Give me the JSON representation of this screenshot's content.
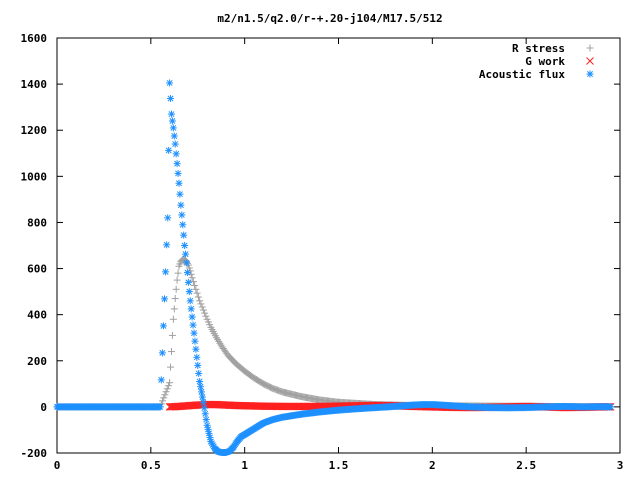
{
  "chart_data": {
    "type": "scatter",
    "title": "m2/n1.5/q2.0/r-+.20-j104/M17.5/512",
    "xlabel": "",
    "ylabel": "",
    "xlim": [
      0,
      3
    ],
    "ylim": [
      -200,
      1600
    ],
    "x_ticks": [
      "0",
      "0.5",
      "1",
      "1.5",
      "2",
      "2.5",
      "3"
    ],
    "x_tick_values": [
      0,
      0.5,
      1,
      1.5,
      2,
      2.5,
      3
    ],
    "y_ticks": [
      "-200",
      "0",
      "200",
      "400",
      "600",
      "800",
      "1000",
      "1200",
      "1400",
      "1600"
    ],
    "y_tick_values": [
      -200,
      0,
      200,
      400,
      600,
      800,
      1000,
      1200,
      1400,
      1600
    ],
    "grid": false,
    "legend_position": "top-right",
    "series": [
      {
        "name": "R stress",
        "marker": "plus",
        "color": "#a0a0a0",
        "x": [
          0.0,
          0.2,
          0.4,
          0.55,
          0.6,
          0.61,
          0.62,
          0.63,
          0.64,
          0.65,
          0.66,
          0.67,
          0.68,
          0.69,
          0.7,
          0.71,
          0.72,
          0.74,
          0.76,
          0.78,
          0.8,
          0.82,
          0.85,
          0.88,
          0.91,
          0.95,
          1.0,
          1.05,
          1.1,
          1.15,
          1.2,
          1.3,
          1.4,
          1.5,
          1.6,
          1.7,
          1.8,
          1.9,
          2.0,
          2.2,
          2.4,
          2.6,
          2.8,
          2.95
        ],
        "y": [
          0,
          0,
          0,
          0,
          105,
          240,
          380,
          470,
          550,
          610,
          630,
          640,
          640,
          630,
          615,
          590,
          560,
          510,
          460,
          420,
          380,
          345,
          300,
          260,
          225,
          190,
          155,
          125,
          100,
          80,
          65,
          45,
          30,
          20,
          15,
          10,
          8,
          6,
          5,
          4,
          3,
          2,
          1,
          0
        ]
      },
      {
        "name": "G work",
        "marker": "cross",
        "color": "#ff2020",
        "x": [
          0.6,
          0.65,
          0.7,
          0.75,
          0.8,
          0.85,
          0.9,
          0.95,
          1.0,
          1.1,
          1.2,
          1.3,
          1.4,
          1.5,
          1.6,
          1.7,
          1.8,
          1.9,
          2.0,
          2.1,
          2.2,
          2.3,
          2.4,
          2.5,
          2.6,
          2.7,
          2.8,
          2.9,
          2.95
        ],
        "y": [
          0,
          2,
          5,
          8,
          10,
          10,
          8,
          6,
          5,
          3,
          2,
          2,
          2,
          3,
          5,
          6,
          5,
          2,
          0,
          -2,
          -3,
          -2,
          0,
          2,
          0,
          -3,
          -2,
          0,
          0
        ]
      },
      {
        "name": "Acoustic flux",
        "marker": "star",
        "color": "#1e90ff",
        "x": [
          0.0,
          0.1,
          0.2,
          0.3,
          0.4,
          0.5,
          0.55,
          0.59,
          0.6,
          0.61,
          0.62,
          0.63,
          0.64,
          0.65,
          0.66,
          0.67,
          0.68,
          0.69,
          0.7,
          0.71,
          0.72,
          0.73,
          0.74,
          0.75,
          0.76,
          0.78,
          0.8,
          0.82,
          0.84,
          0.86,
          0.88,
          0.9,
          0.92,
          0.94,
          0.96,
          0.98,
          1.0,
          1.02,
          1.04,
          1.06,
          1.08,
          1.1,
          1.15,
          1.2,
          1.3,
          1.4,
          1.5,
          1.6,
          1.7,
          1.8,
          1.9,
          1.95,
          2.0,
          2.05,
          2.1,
          2.2,
          2.3,
          2.4,
          2.5,
          2.6,
          2.7,
          2.8,
          2.9,
          2.95
        ],
        "y": [
          0,
          0,
          0,
          0,
          0,
          0,
          0,
          820,
          1405,
          1270,
          1210,
          1140,
          1055,
          970,
          875,
          790,
          700,
          625,
          540,
          460,
          390,
          320,
          250,
          180,
          110,
          20,
          -80,
          -150,
          -180,
          -195,
          -198,
          -198,
          -192,
          -175,
          -150,
          -130,
          -120,
          -110,
          -100,
          -90,
          -80,
          -70,
          -55,
          -45,
          -32,
          -22,
          -14,
          -8,
          -3,
          2,
          8,
          10,
          10,
          8,
          5,
          0,
          -3,
          -4,
          -3,
          0,
          2,
          0,
          1,
          0
        ]
      }
    ]
  }
}
